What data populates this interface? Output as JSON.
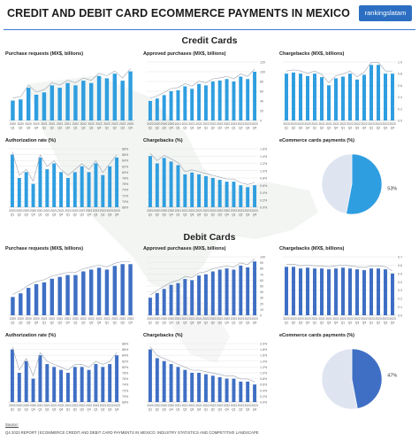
{
  "header": {
    "title": "CREDIT AND DEBIT CARD ECOMMERCE PAYMENTS IN MEXICO",
    "brand": "rankingslatam"
  },
  "sections": {
    "credit": "Credit Cards",
    "debit": "Debit Cards"
  },
  "footer": {
    "source_label": "Source:",
    "source_text": "Q4 2023 REPORT | ECOMMERCE CREDIT AND DEBIT CARD PAYMENTS IN MEXICO: INDUSTRY STATISTICS AND COMPETITIVE LANDSCAPE"
  },
  "colors": {
    "bar_credit": "#2f9ee0",
    "bar_debit": "#3f6fc4",
    "trend_line": "#9aa3b0",
    "pie_light": "#dfe4f1",
    "pie_credit": "#2f9ee0",
    "pie_debit": "#3f6fc4"
  },
  "chart_data": [
    {
      "id": "cc-purchase-requests",
      "type": "bar",
      "title": "Purchase requests (MX$, billions)",
      "categories": [
        "2020 Q1",
        "2020 Q2",
        "2020 Q3",
        "2020 Q4",
        "2021 Q1",
        "2021 Q2",
        "2021 Q3",
        "2021 Q4",
        "2022 Q1",
        "2022 Q2",
        "2022 Q3",
        "2022 Q4",
        "2023 Q1",
        "2023 Q2",
        "2023 Q3",
        "2023 Q4"
      ],
      "tick_labels": [
        [
          "2020",
          "Q1"
        ],
        [
          "2020",
          "Q2"
        ],
        [
          "2020",
          "Q3"
        ],
        [
          "2020",
          "Q4"
        ],
        [
          "2021",
          "Q1"
        ],
        [
          "2021",
          "Q2"
        ],
        [
          "2021",
          "Q3"
        ],
        [
          "2021",
          "Q4"
        ],
        [
          "2022",
          "Q1"
        ],
        [
          "2022",
          "Q2"
        ],
        [
          "2022",
          "Q3"
        ],
        [
          "2022",
          "Q4"
        ],
        [
          "2023",
          "Q1"
        ],
        [
          "2023",
          "Q2"
        ],
        [
          "2023",
          "Q3"
        ],
        [
          "2023",
          "Q4"
        ]
      ],
      "values": [
        8.5,
        9,
        14,
        11,
        12,
        15,
        14,
        16,
        15,
        17,
        16,
        19,
        18,
        20,
        17,
        21
      ],
      "ylim": [
        0,
        25
      ],
      "trend": true,
      "y_axis_labels": false
    },
    {
      "id": "cc-approved-purchases",
      "type": "bar",
      "title": "Approved purchases (MX$, billions)",
      "categories": [
        "2020 Q1",
        "2020 Q2",
        "2020 Q3",
        "2020 Q4",
        "2021 Q1",
        "2021 Q2",
        "2021 Q3",
        "2021 Q4",
        "2022 Q1",
        "2022 Q2",
        "2022 Q3",
        "2022 Q4",
        "2023 Q1",
        "2023 Q2",
        "2023 Q3",
        "2023 Q4"
      ],
      "tick_labels": [
        [
          "2020",
          "Q1"
        ],
        [
          "2020",
          "Q2"
        ],
        [
          "2020",
          "Q3"
        ],
        [
          "2020",
          "Q4"
        ],
        [
          "2021",
          "Q1"
        ],
        [
          "2021",
          "Q2"
        ],
        [
          "2021",
          "Q3"
        ],
        [
          "2021",
          "Q4"
        ],
        [
          "2022",
          "Q1"
        ],
        [
          "2022",
          "Q2"
        ],
        [
          "2022",
          "Q3"
        ],
        [
          "2022",
          "Q4"
        ],
        [
          "2023",
          "Q1"
        ],
        [
          "2023",
          "Q2"
        ],
        [
          "2023",
          "Q3"
        ],
        [
          "2023",
          "Q4"
        ]
      ],
      "values": [
        40,
        45,
        52,
        60,
        62,
        70,
        65,
        75,
        72,
        80,
        82,
        85,
        80,
        90,
        85,
        100
      ],
      "ylim": [
        0,
        120
      ],
      "yticks": [
        0,
        20,
        40,
        60,
        80,
        100,
        120
      ],
      "trend": true,
      "y_axis_labels": true
    },
    {
      "id": "cc-chargebacks",
      "type": "bar",
      "title": "Chargebacks (MX$, billions)",
      "categories": [
        "2020 Q1",
        "2020 Q2",
        "2020 Q3",
        "2020 Q4",
        "2021 Q1",
        "2021 Q2",
        "2021 Q3",
        "2021 Q4",
        "2022 Q1",
        "2022 Q2",
        "2022 Q3",
        "2022 Q4",
        "2023 Q1",
        "2023 Q2",
        "2023 Q3",
        "2023 Q4"
      ],
      "tick_labels": [
        [
          "2020",
          "Q1"
        ],
        [
          "2020",
          "Q2"
        ],
        [
          "2020",
          "Q3"
        ],
        [
          "2020",
          "Q4"
        ],
        [
          "2021",
          "Q1"
        ],
        [
          "2021",
          "Q2"
        ],
        [
          "2021",
          "Q3"
        ],
        [
          "2021",
          "Q4"
        ],
        [
          "2022",
          "Q1"
        ],
        [
          "2022",
          "Q2"
        ],
        [
          "2022",
          "Q3"
        ],
        [
          "2022",
          "Q4"
        ],
        [
          "2023",
          "Q1"
        ],
        [
          "2023",
          "Q2"
        ],
        [
          "2023",
          "Q3"
        ],
        [
          "2023",
          "Q4"
        ]
      ],
      "values": [
        0.8,
        0.82,
        0.8,
        0.76,
        0.8,
        0.74,
        0.6,
        0.72,
        0.75,
        0.8,
        0.7,
        0.78,
        0.95,
        0.95,
        0.8,
        0.8
      ],
      "ylim": [
        0,
        1.0
      ],
      "yticks": [
        0,
        0.2,
        0.4,
        0.6,
        0.8,
        1.0
      ],
      "tick_format": "1",
      "trend": true,
      "y_axis_labels": true
    },
    {
      "id": "cc-authorization-rate",
      "type": "bar",
      "title": "Authorization rate (%)",
      "categories": [
        "2020 Q1",
        "2020 Q2",
        "2020 Q3",
        "2020 Q4",
        "2021 Q1",
        "2021 Q2",
        "2021 Q3",
        "2021 Q4",
        "2022 Q1",
        "2022 Q2",
        "2022 Q3",
        "2022 Q4",
        "2023 Q1",
        "2023 Q2",
        "2023 Q3",
        "2023 Q4"
      ],
      "tick_labels": [
        [
          "2020",
          "Q1"
        ],
        [
          "2020",
          "Q2"
        ],
        [
          "2020",
          "Q3"
        ],
        [
          "2020",
          "Q4"
        ],
        [
          "2021",
          "Q1"
        ],
        [
          "2021",
          "Q2"
        ],
        [
          "2021",
          "Q3"
        ],
        [
          "2021",
          "Q4"
        ],
        [
          "2022",
          "Q1"
        ],
        [
          "2022",
          "Q2"
        ],
        [
          "2022",
          "Q3"
        ],
        [
          "2022",
          "Q4"
        ],
        [
          "2023",
          "Q1"
        ],
        [
          "2023",
          "Q2"
        ],
        [
          "2023",
          "Q3"
        ],
        [
          "2023",
          "Q4"
        ]
      ],
      "values": [
        86,
        78,
        80,
        76,
        85,
        81,
        83,
        80,
        78,
        80,
        82,
        80,
        83,
        79,
        82,
        85
      ],
      "ylim": [
        68,
        88
      ],
      "yticks": [
        68,
        70,
        72,
        74,
        76,
        78,
        80,
        82,
        84,
        86,
        88
      ],
      "tick_suffix": "%",
      "trend": true,
      "y_axis_labels": true
    },
    {
      "id": "cc-chargebacks-pct",
      "type": "bar",
      "title": "Chargebacks (%)",
      "categories": [
        "2020 Q1",
        "2020 Q2",
        "2020 Q3",
        "2020 Q4",
        "2021 Q1",
        "2021 Q2",
        "2021 Q3",
        "2021 Q4",
        "2022 Q1",
        "2022 Q2",
        "2022 Q3",
        "2022 Q4",
        "2023 Q1",
        "2023 Q2",
        "2023 Q3",
        "2023 Q4"
      ],
      "tick_labels": [
        [
          "2020",
          "Q1"
        ],
        [
          "2020",
          "Q2"
        ],
        [
          "2020",
          "Q3"
        ],
        [
          "2020",
          "Q4"
        ],
        [
          "2021",
          "Q1"
        ],
        [
          "2021",
          "Q2"
        ],
        [
          "2021",
          "Q3"
        ],
        [
          "2021",
          "Q4"
        ],
        [
          "2022",
          "Q1"
        ],
        [
          "2022",
          "Q2"
        ],
        [
          "2022",
          "Q3"
        ],
        [
          "2022",
          "Q4"
        ],
        [
          "2023",
          "Q1"
        ],
        [
          "2023",
          "Q2"
        ],
        [
          "2023",
          "Q3"
        ],
        [
          "2023",
          "Q4"
        ]
      ],
      "values": [
        1.4,
        1.2,
        1.35,
        1.25,
        1.15,
        0.9,
        0.95,
        0.9,
        0.85,
        0.8,
        0.75,
        0.7,
        0.7,
        0.6,
        0.55,
        0.6
      ],
      "ylim": [
        0,
        1.6
      ],
      "yticks": [
        0,
        0.2,
        0.4,
        0.6,
        0.8,
        1.0,
        1.2,
        1.4,
        1.6
      ],
      "tick_suffix": "%",
      "tick_format": "1",
      "trend": true,
      "y_axis_labels": true
    },
    {
      "id": "cc-ecommerce-share",
      "type": "pie",
      "title": "eCommerce cards payments (%)",
      "slices": [
        {
          "value": 53,
          "label": "53%",
          "highlight": true
        },
        {
          "value": 47,
          "label": "",
          "highlight": false
        }
      ]
    },
    {
      "id": "dc-purchase-requests",
      "type": "bar",
      "title": "Purchase requests (MX$, billions)",
      "categories": [
        "2020 Q1",
        "2020 Q2",
        "2020 Q3",
        "2020 Q4",
        "2021 Q1",
        "2021 Q2",
        "2021 Q3",
        "2021 Q4",
        "2022 Q1",
        "2022 Q2",
        "2022 Q3",
        "2022 Q4",
        "2023 Q1",
        "2023 Q2",
        "2023 Q3",
        "2023 Q4"
      ],
      "tick_labels": [
        [
          "2020",
          "Q1"
        ],
        [
          "2020",
          "Q2"
        ],
        [
          "2020",
          "Q3"
        ],
        [
          "2020",
          "Q4"
        ],
        [
          "2021",
          "Q1"
        ],
        [
          "2021",
          "Q2"
        ],
        [
          "2021",
          "Q3"
        ],
        [
          "2021",
          "Q4"
        ],
        [
          "2022",
          "Q1"
        ],
        [
          "2022",
          "Q2"
        ],
        [
          "2022",
          "Q3"
        ],
        [
          "2022",
          "Q4"
        ],
        [
          "2023",
          "Q1"
        ],
        [
          "2023",
          "Q2"
        ],
        [
          "2023",
          "Q3"
        ],
        [
          "2023",
          "Q4"
        ]
      ],
      "values": [
        5,
        6,
        7.5,
        8.5,
        9,
        10,
        10.5,
        11,
        11,
        12,
        12.5,
        13,
        12.5,
        13.5,
        14,
        14
      ],
      "ylim": [
        0,
        16
      ],
      "trend": true,
      "y_axis_labels": false
    },
    {
      "id": "dc-approved-purchases",
      "type": "bar",
      "title": "Approved purchases (MX$, billions)",
      "categories": [
        "2020 Q1",
        "2020 Q2",
        "2020 Q3",
        "2020 Q4",
        "2021 Q1",
        "2021 Q2",
        "2021 Q3",
        "2021 Q4",
        "2022 Q1",
        "2022 Q2",
        "2022 Q3",
        "2022 Q4",
        "2023 Q1",
        "2023 Q2",
        "2023 Q3",
        "2023 Q4"
      ],
      "tick_labels": [
        [
          "2020",
          "Q1"
        ],
        [
          "2020",
          "Q2"
        ],
        [
          "2020",
          "Q3"
        ],
        [
          "2020",
          "Q4"
        ],
        [
          "2021",
          "Q1"
        ],
        [
          "2021",
          "Q2"
        ],
        [
          "2021",
          "Q3"
        ],
        [
          "2021",
          "Q4"
        ],
        [
          "2022",
          "Q1"
        ],
        [
          "2022",
          "Q2"
        ],
        [
          "2022",
          "Q3"
        ],
        [
          "2022",
          "Q4"
        ],
        [
          "2023",
          "Q1"
        ],
        [
          "2023",
          "Q2"
        ],
        [
          "2023",
          "Q3"
        ],
        [
          "2023",
          "Q4"
        ]
      ],
      "values": [
        30,
        38,
        45,
        52,
        55,
        62,
        60,
        68,
        70,
        75,
        78,
        80,
        78,
        85,
        82,
        92
      ],
      "ylim": [
        0,
        100
      ],
      "yticks": [
        0,
        10,
        20,
        30,
        40,
        50,
        60,
        70,
        80,
        90,
        100
      ],
      "trend": true,
      "y_axis_labels": true
    },
    {
      "id": "dc-chargebacks",
      "type": "bar",
      "title": "Chargebacks (MX$, billions)",
      "categories": [
        "2020 Q1",
        "2020 Q2",
        "2020 Q3",
        "2020 Q4",
        "2021 Q1",
        "2021 Q2",
        "2021 Q3",
        "2021 Q4",
        "2022 Q1",
        "2022 Q2",
        "2022 Q3",
        "2022 Q4",
        "2023 Q1",
        "2023 Q2",
        "2023 Q3",
        "2023 Q4"
      ],
      "tick_labels": [
        [
          "2020",
          "Q1"
        ],
        [
          "2020",
          "Q2"
        ],
        [
          "2020",
          "Q3"
        ],
        [
          "2020",
          "Q4"
        ],
        [
          "2021",
          "Q1"
        ],
        [
          "2021",
          "Q2"
        ],
        [
          "2021",
          "Q3"
        ],
        [
          "2021",
          "Q4"
        ],
        [
          "2022",
          "Q1"
        ],
        [
          "2022",
          "Q2"
        ],
        [
          "2022",
          "Q3"
        ],
        [
          "2022",
          "Q4"
        ],
        [
          "2023",
          "Q1"
        ],
        [
          "2023",
          "Q2"
        ],
        [
          "2023",
          "Q3"
        ],
        [
          "2023",
          "Q4"
        ]
      ],
      "values": [
        0.58,
        0.58,
        0.56,
        0.57,
        0.56,
        0.56,
        0.55,
        0.56,
        0.57,
        0.56,
        0.55,
        0.54,
        0.56,
        0.56,
        0.55,
        0.5
      ],
      "ylim": [
        0,
        0.7
      ],
      "yticks": [
        0,
        0.1,
        0.2,
        0.3,
        0.4,
        0.5,
        0.6,
        0.7
      ],
      "tick_format": "1",
      "trend": true,
      "y_axis_labels": true
    },
    {
      "id": "dc-authorization-rate",
      "type": "bar",
      "title": "Authorization rate (%)",
      "categories": [
        "2020 Q1",
        "2020 Q2",
        "2020 Q3",
        "2020 Q4",
        "2021 Q1",
        "2021 Q2",
        "2021 Q3",
        "2021 Q4",
        "2022 Q1",
        "2022 Q2",
        "2022 Q3",
        "2022 Q4",
        "2023 Q1",
        "2023 Q2",
        "2023 Q3",
        "2023 Q4"
      ],
      "tick_labels": [
        [
          "2020",
          "Q1"
        ],
        [
          "2020",
          "Q2"
        ],
        [
          "2020",
          "Q3"
        ],
        [
          "2020",
          "Q4"
        ],
        [
          "2021",
          "Q1"
        ],
        [
          "2021",
          "Q2"
        ],
        [
          "2021",
          "Q3"
        ],
        [
          "2021",
          "Q4"
        ],
        [
          "2022",
          "Q1"
        ],
        [
          "2022",
          "Q2"
        ],
        [
          "2022",
          "Q3"
        ],
        [
          "2022",
          "Q4"
        ],
        [
          "2023",
          "Q1"
        ],
        [
          "2023",
          "Q2"
        ],
        [
          "2023",
          "Q3"
        ],
        [
          "2023",
          "Q4"
        ]
      ],
      "values": [
        86,
        78,
        82,
        76,
        84,
        81,
        80,
        79,
        78,
        80,
        80,
        79,
        81,
        80,
        81,
        84
      ],
      "ylim": [
        68,
        88
      ],
      "yticks": [
        68,
        70,
        72,
        74,
        76,
        78,
        80,
        82,
        84,
        86,
        88
      ],
      "tick_suffix": "%",
      "trend": true,
      "y_axis_labels": true
    },
    {
      "id": "dc-chargebacks-pct",
      "type": "bar",
      "title": "Chargebacks (%)",
      "categories": [
        "2020 Q1",
        "2020 Q2",
        "2020 Q3",
        "2020 Q4",
        "2021 Q1",
        "2021 Q2",
        "2021 Q3",
        "2021 Q4",
        "2022 Q1",
        "2022 Q2",
        "2022 Q3",
        "2022 Q4",
        "2023 Q1",
        "2023 Q2",
        "2023 Q3",
        "2023 Q4"
      ],
      "tick_labels": [
        [
          "2020",
          "Q1"
        ],
        [
          "2020",
          "Q2"
        ],
        [
          "2020",
          "Q3"
        ],
        [
          "2020",
          "Q4"
        ],
        [
          "2021",
          "Q1"
        ],
        [
          "2021",
          "Q2"
        ],
        [
          "2021",
          "Q3"
        ],
        [
          "2021",
          "Q4"
        ],
        [
          "2022",
          "Q1"
        ],
        [
          "2022",
          "Q2"
        ],
        [
          "2022",
          "Q3"
        ],
        [
          "2022",
          "Q4"
        ],
        [
          "2023",
          "Q1"
        ],
        [
          "2023",
          "Q2"
        ],
        [
          "2023",
          "Q3"
        ],
        [
          "2023",
          "Q4"
        ]
      ],
      "values": [
        1.8,
        1.5,
        1.4,
        1.3,
        1.2,
        1.1,
        1.0,
        1.0,
        0.95,
        0.9,
        0.85,
        0.8,
        0.8,
        0.7,
        0.7,
        0.6
      ],
      "ylim": [
        0,
        2.0
      ],
      "yticks": [
        0,
        0.2,
        0.4,
        0.6,
        0.8,
        1.0,
        1.2,
        1.4,
        1.6,
        1.8,
        2.0
      ],
      "tick_suffix": "%",
      "tick_format": "1",
      "trend": true,
      "y_axis_labels": true
    },
    {
      "id": "dc-ecommerce-share",
      "type": "pie",
      "title": "eCommerce cards payments (%)",
      "slices": [
        {
          "value": 47,
          "label": "47%",
          "highlight": true
        },
        {
          "value": 53,
          "label": "",
          "highlight": false
        }
      ]
    }
  ]
}
